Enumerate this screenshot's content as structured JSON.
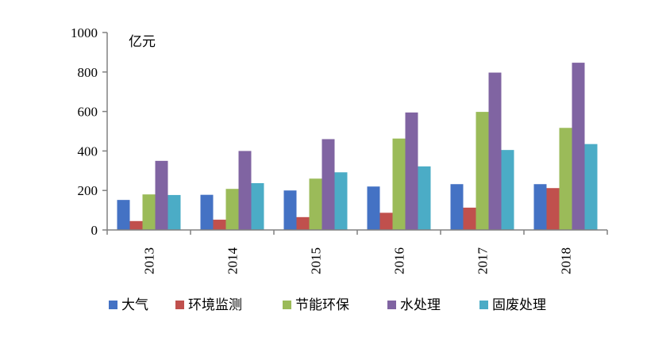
{
  "chart_data": {
    "type": "bar",
    "unit_label": "亿元",
    "categories": [
      "2013",
      "2014",
      "2015",
      "2016",
      "2017",
      "2018"
    ],
    "series": [
      {
        "name": "大气",
        "color": "#4472C4",
        "values": [
          152,
          178,
          200,
          220,
          232,
          232
        ]
      },
      {
        "name": "环境监测",
        "color": "#C0504D",
        "values": [
          45,
          52,
          65,
          87,
          113,
          212
        ]
      },
      {
        "name": "节能环保",
        "color": "#9BBB59",
        "values": [
          180,
          208,
          260,
          463,
          598,
          517
        ]
      },
      {
        "name": "水处理",
        "color": "#8064A2",
        "values": [
          350,
          400,
          460,
          595,
          797,
          847
        ]
      },
      {
        "name": "固废处理",
        "color": "#4BACC6",
        "values": [
          177,
          237,
          292,
          322,
          405,
          435
        ]
      }
    ],
    "y_ticks": [
      "0",
      "200",
      "400",
      "600",
      "800",
      "1000"
    ],
    "ylim": [
      0,
      1000
    ],
    "grid": false,
    "legend_position": "bottom",
    "x_tick_rotation": "vertical"
  }
}
